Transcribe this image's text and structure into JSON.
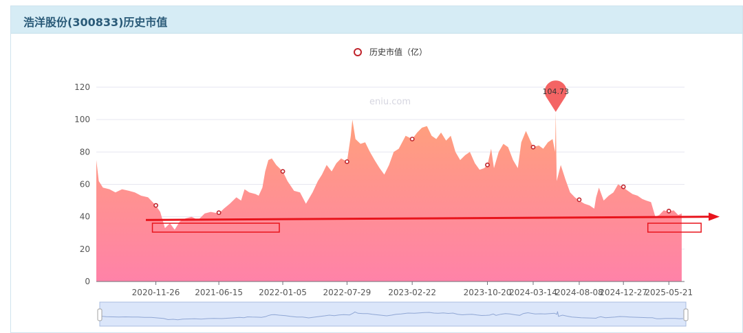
{
  "panel": {
    "title": "浩洋股份(300833)历史市值"
  },
  "watermark": "eniu.com",
  "colors": {
    "area_top": "#ffa17a",
    "area_bottom": "#ff82a8",
    "marker": "#c0242c",
    "pin": "#f46464",
    "annotation": "#e8141c",
    "axis_text": "#555555",
    "grid": "#e6e6f0",
    "slider_fill": "#dbe6fa",
    "slider_border": "#a8bce0"
  },
  "chart_data": {
    "type": "area",
    "legend": {
      "label": "历史市值（亿）",
      "position": "top-center"
    },
    "ylim": [
      0,
      120
    ],
    "yticks": [
      0,
      20,
      40,
      60,
      80,
      100,
      120
    ],
    "xlim": [
      "2020-05-20",
      "2025-07-10"
    ],
    "xticks": [
      "2020-11-26",
      "2021-06-15",
      "2022-01-05",
      "2022-07-29",
      "2023-02-22",
      "2023-10-20",
      "2024-03-14",
      "2024-08-08",
      "2024-12-27",
      "2025-05-21"
    ],
    "grid": true,
    "series": [
      {
        "name": "历史市值（亿）",
        "x": [
          "2020-05-20",
          "2020-05-28",
          "2020-06-10",
          "2020-07-01",
          "2020-07-20",
          "2020-08-10",
          "2020-09-01",
          "2020-09-20",
          "2020-10-10",
          "2020-11-01",
          "2020-11-26",
          "2020-12-10",
          "2020-12-25",
          "2021-01-10",
          "2021-01-25",
          "2021-02-10",
          "2021-03-01",
          "2021-03-20",
          "2021-04-10",
          "2021-05-01",
          "2021-05-20",
          "2021-06-15",
          "2021-07-01",
          "2021-07-20",
          "2021-08-10",
          "2021-08-25",
          "2021-09-05",
          "2021-09-20",
          "2021-10-10",
          "2021-10-20",
          "2021-11-01",
          "2021-11-10",
          "2021-11-20",
          "2021-12-01",
          "2021-12-15",
          "2022-01-05",
          "2022-01-20",
          "2022-02-10",
          "2022-03-01",
          "2022-03-20",
          "2022-04-10",
          "2022-04-27",
          "2022-05-10",
          "2022-05-25",
          "2022-06-10",
          "2022-06-25",
          "2022-07-10",
          "2022-07-29",
          "2022-08-10",
          "2022-08-15",
          "2022-08-25",
          "2022-09-10",
          "2022-09-25",
          "2022-10-10",
          "2022-10-25",
          "2022-11-10",
          "2022-11-25",
          "2022-12-10",
          "2022-12-25",
          "2023-01-10",
          "2023-02-01",
          "2023-02-22",
          "2023-03-10",
          "2023-03-25",
          "2023-04-10",
          "2023-04-25",
          "2023-05-10",
          "2023-05-25",
          "2023-06-10",
          "2023-06-25",
          "2023-07-10",
          "2023-07-25",
          "2023-08-10",
          "2023-08-25",
          "2023-09-10",
          "2023-09-25",
          "2023-10-10",
          "2023-10-20",
          "2023-11-01",
          "2023-11-10",
          "2023-11-25",
          "2023-12-10",
          "2023-12-25",
          "2024-01-10",
          "2024-01-25",
          "2024-02-05",
          "2024-02-20",
          "2024-03-14",
          "2024-04-01",
          "2024-04-15",
          "2024-04-30",
          "2024-05-15",
          "2024-05-23",
          "2024-05-25",
          "2024-05-28",
          "2024-06-10",
          "2024-06-25",
          "2024-07-10",
          "2024-07-25",
          "2024-08-08",
          "2024-08-25",
          "2024-09-10",
          "2024-09-25",
          "2024-10-01",
          "2024-10-10",
          "2024-10-25",
          "2024-11-10",
          "2024-11-25",
          "2024-12-10",
          "2024-12-27",
          "2025-01-10",
          "2025-01-25",
          "2025-02-10",
          "2025-02-25",
          "2025-03-10",
          "2025-03-25",
          "2025-04-08",
          "2025-04-20",
          "2025-05-05",
          "2025-05-21",
          "2025-06-05",
          "2025-06-20",
          "2025-07-01"
        ],
        "values": [
          75,
          62,
          58,
          57,
          55,
          57,
          56,
          55,
          53,
          52,
          47,
          43,
          33,
          36,
          32,
          37,
          39,
          40,
          38,
          42,
          43,
          42,
          45,
          48,
          52,
          50,
          57,
          55,
          54,
          53,
          58,
          68,
          75,
          76,
          72,
          68,
          62,
          56,
          55,
          48,
          55,
          62,
          66,
          72,
          68,
          73,
          76,
          74,
          90,
          100,
          88,
          85,
          86,
          80,
          75,
          70,
          66,
          72,
          80,
          82,
          90,
          88,
          92,
          95,
          96,
          90,
          88,
          92,
          87,
          90,
          80,
          75,
          78,
          80,
          73,
          69,
          70,
          72,
          82,
          70,
          80,
          85,
          83,
          75,
          70,
          86,
          93,
          83,
          84,
          82,
          86,
          88,
          80,
          104.7,
          62,
          72,
          63,
          55,
          52,
          50,
          48,
          47,
          45,
          52,
          58,
          50,
          53,
          55,
          60,
          58,
          56,
          54,
          53,
          51,
          50,
          49,
          40,
          41,
          44,
          43,
          44,
          41,
          42
        ]
      }
    ],
    "markers": [
      {
        "x": "2020-11-26",
        "y": 47
      },
      {
        "x": "2021-06-15",
        "y": 42.5
      },
      {
        "x": "2022-01-05",
        "y": 68
      },
      {
        "x": "2022-07-29",
        "y": 74
      },
      {
        "x": "2023-02-22",
        "y": 88
      },
      {
        "x": "2023-10-20",
        "y": 72
      },
      {
        "x": "2024-03-14",
        "y": 83
      },
      {
        "x": "2024-08-08",
        "y": 50.5
      },
      {
        "x": "2024-12-27",
        "y": 58.5
      },
      {
        "x": "2025-05-21",
        "y": 43.5
      }
    ],
    "max_point": {
      "x": "2024-05-25",
      "y": 104.73,
      "label": "104.73"
    },
    "annotations": {
      "arrow": {
        "y_start": 38,
        "y_end": 40
      },
      "boxes": [
        {
          "x0": "2020-11-15",
          "x1": "2021-12-25",
          "y0": 30.5,
          "y1": 36
        },
        {
          "x0": "2025-03-15",
          "x1": "2025-09-01",
          "y0": 30.5,
          "y1": 36
        }
      ]
    }
  }
}
